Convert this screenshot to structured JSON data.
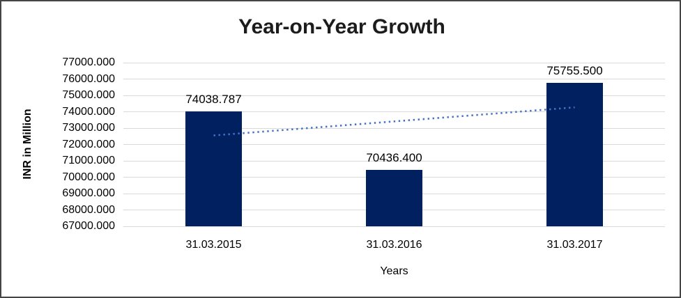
{
  "chart_data": {
    "type": "bar",
    "title": "Year-on-Year Growth",
    "xlabel": "Years",
    "ylabel": "INR in Million",
    "categories": [
      "31.03.2015",
      "31.03.2016",
      "31.03.2017"
    ],
    "values": [
      74038.787,
      70436.4,
      75755.5
    ],
    "data_labels": [
      "74038.787",
      "70436.400",
      "75755.500"
    ],
    "ylim": [
      67000,
      77000
    ],
    "ytick_step": 1000,
    "ytick_decimals": 3,
    "grid": true,
    "legend": "none",
    "trendline": {
      "type": "linear",
      "style": "dotted"
    },
    "colors": {
      "bar": "#002060",
      "trendline": "#4472c4",
      "gridline": "#d9d9d9",
      "title_text": "#1c1c1c",
      "axis_text": "#000000"
    }
  }
}
